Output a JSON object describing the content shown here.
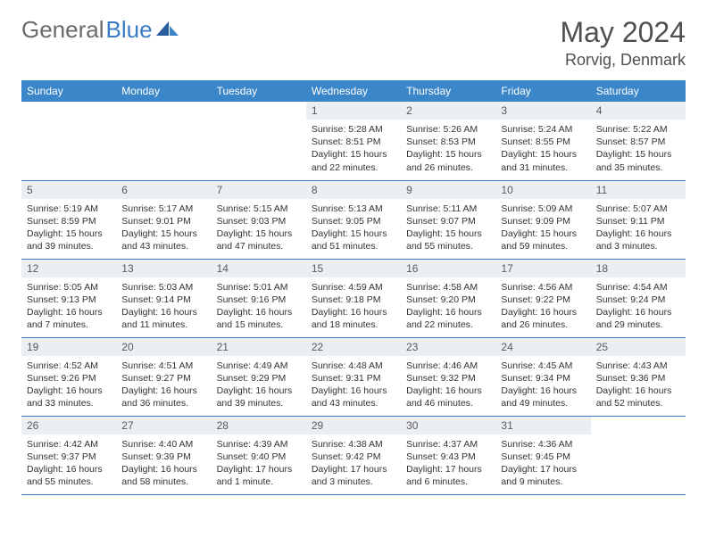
{
  "brand": {
    "part1": "General",
    "part2": "Blue"
  },
  "title": "May 2024",
  "location": "Rorvig, Denmark",
  "colors": {
    "header_bg": "#3a86c8",
    "header_text": "#ffffff",
    "daynum_bg": "#eceff2",
    "border": "#3a7cc4",
    "logo_gray": "#6a6a6a",
    "logo_blue": "#3a7cc4"
  },
  "weekdays": [
    "Sunday",
    "Monday",
    "Tuesday",
    "Wednesday",
    "Thursday",
    "Friday",
    "Saturday"
  ],
  "weeks": [
    [
      null,
      null,
      null,
      {
        "d": "1",
        "sr": "Sunrise: 5:28 AM",
        "ss": "Sunset: 8:51 PM",
        "dl1": "Daylight: 15 hours",
        "dl2": "and 22 minutes."
      },
      {
        "d": "2",
        "sr": "Sunrise: 5:26 AM",
        "ss": "Sunset: 8:53 PM",
        "dl1": "Daylight: 15 hours",
        "dl2": "and 26 minutes."
      },
      {
        "d": "3",
        "sr": "Sunrise: 5:24 AM",
        "ss": "Sunset: 8:55 PM",
        "dl1": "Daylight: 15 hours",
        "dl2": "and 31 minutes."
      },
      {
        "d": "4",
        "sr": "Sunrise: 5:22 AM",
        "ss": "Sunset: 8:57 PM",
        "dl1": "Daylight: 15 hours",
        "dl2": "and 35 minutes."
      }
    ],
    [
      {
        "d": "5",
        "sr": "Sunrise: 5:19 AM",
        "ss": "Sunset: 8:59 PM",
        "dl1": "Daylight: 15 hours",
        "dl2": "and 39 minutes."
      },
      {
        "d": "6",
        "sr": "Sunrise: 5:17 AM",
        "ss": "Sunset: 9:01 PM",
        "dl1": "Daylight: 15 hours",
        "dl2": "and 43 minutes."
      },
      {
        "d": "7",
        "sr": "Sunrise: 5:15 AM",
        "ss": "Sunset: 9:03 PM",
        "dl1": "Daylight: 15 hours",
        "dl2": "and 47 minutes."
      },
      {
        "d": "8",
        "sr": "Sunrise: 5:13 AM",
        "ss": "Sunset: 9:05 PM",
        "dl1": "Daylight: 15 hours",
        "dl2": "and 51 minutes."
      },
      {
        "d": "9",
        "sr": "Sunrise: 5:11 AM",
        "ss": "Sunset: 9:07 PM",
        "dl1": "Daylight: 15 hours",
        "dl2": "and 55 minutes."
      },
      {
        "d": "10",
        "sr": "Sunrise: 5:09 AM",
        "ss": "Sunset: 9:09 PM",
        "dl1": "Daylight: 15 hours",
        "dl2": "and 59 minutes."
      },
      {
        "d": "11",
        "sr": "Sunrise: 5:07 AM",
        "ss": "Sunset: 9:11 PM",
        "dl1": "Daylight: 16 hours",
        "dl2": "and 3 minutes."
      }
    ],
    [
      {
        "d": "12",
        "sr": "Sunrise: 5:05 AM",
        "ss": "Sunset: 9:13 PM",
        "dl1": "Daylight: 16 hours",
        "dl2": "and 7 minutes."
      },
      {
        "d": "13",
        "sr": "Sunrise: 5:03 AM",
        "ss": "Sunset: 9:14 PM",
        "dl1": "Daylight: 16 hours",
        "dl2": "and 11 minutes."
      },
      {
        "d": "14",
        "sr": "Sunrise: 5:01 AM",
        "ss": "Sunset: 9:16 PM",
        "dl1": "Daylight: 16 hours",
        "dl2": "and 15 minutes."
      },
      {
        "d": "15",
        "sr": "Sunrise: 4:59 AM",
        "ss": "Sunset: 9:18 PM",
        "dl1": "Daylight: 16 hours",
        "dl2": "and 18 minutes."
      },
      {
        "d": "16",
        "sr": "Sunrise: 4:58 AM",
        "ss": "Sunset: 9:20 PM",
        "dl1": "Daylight: 16 hours",
        "dl2": "and 22 minutes."
      },
      {
        "d": "17",
        "sr": "Sunrise: 4:56 AM",
        "ss": "Sunset: 9:22 PM",
        "dl1": "Daylight: 16 hours",
        "dl2": "and 26 minutes."
      },
      {
        "d": "18",
        "sr": "Sunrise: 4:54 AM",
        "ss": "Sunset: 9:24 PM",
        "dl1": "Daylight: 16 hours",
        "dl2": "and 29 minutes."
      }
    ],
    [
      {
        "d": "19",
        "sr": "Sunrise: 4:52 AM",
        "ss": "Sunset: 9:26 PM",
        "dl1": "Daylight: 16 hours",
        "dl2": "and 33 minutes."
      },
      {
        "d": "20",
        "sr": "Sunrise: 4:51 AM",
        "ss": "Sunset: 9:27 PM",
        "dl1": "Daylight: 16 hours",
        "dl2": "and 36 minutes."
      },
      {
        "d": "21",
        "sr": "Sunrise: 4:49 AM",
        "ss": "Sunset: 9:29 PM",
        "dl1": "Daylight: 16 hours",
        "dl2": "and 39 minutes."
      },
      {
        "d": "22",
        "sr": "Sunrise: 4:48 AM",
        "ss": "Sunset: 9:31 PM",
        "dl1": "Daylight: 16 hours",
        "dl2": "and 43 minutes."
      },
      {
        "d": "23",
        "sr": "Sunrise: 4:46 AM",
        "ss": "Sunset: 9:32 PM",
        "dl1": "Daylight: 16 hours",
        "dl2": "and 46 minutes."
      },
      {
        "d": "24",
        "sr": "Sunrise: 4:45 AM",
        "ss": "Sunset: 9:34 PM",
        "dl1": "Daylight: 16 hours",
        "dl2": "and 49 minutes."
      },
      {
        "d": "25",
        "sr": "Sunrise: 4:43 AM",
        "ss": "Sunset: 9:36 PM",
        "dl1": "Daylight: 16 hours",
        "dl2": "and 52 minutes."
      }
    ],
    [
      {
        "d": "26",
        "sr": "Sunrise: 4:42 AM",
        "ss": "Sunset: 9:37 PM",
        "dl1": "Daylight: 16 hours",
        "dl2": "and 55 minutes."
      },
      {
        "d": "27",
        "sr": "Sunrise: 4:40 AM",
        "ss": "Sunset: 9:39 PM",
        "dl1": "Daylight: 16 hours",
        "dl2": "and 58 minutes."
      },
      {
        "d": "28",
        "sr": "Sunrise: 4:39 AM",
        "ss": "Sunset: 9:40 PM",
        "dl1": "Daylight: 17 hours",
        "dl2": "and 1 minute."
      },
      {
        "d": "29",
        "sr": "Sunrise: 4:38 AM",
        "ss": "Sunset: 9:42 PM",
        "dl1": "Daylight: 17 hours",
        "dl2": "and 3 minutes."
      },
      {
        "d": "30",
        "sr": "Sunrise: 4:37 AM",
        "ss": "Sunset: 9:43 PM",
        "dl1": "Daylight: 17 hours",
        "dl2": "and 6 minutes."
      },
      {
        "d": "31",
        "sr": "Sunrise: 4:36 AM",
        "ss": "Sunset: 9:45 PM",
        "dl1": "Daylight: 17 hours",
        "dl2": "and 9 minutes."
      },
      null
    ]
  ]
}
